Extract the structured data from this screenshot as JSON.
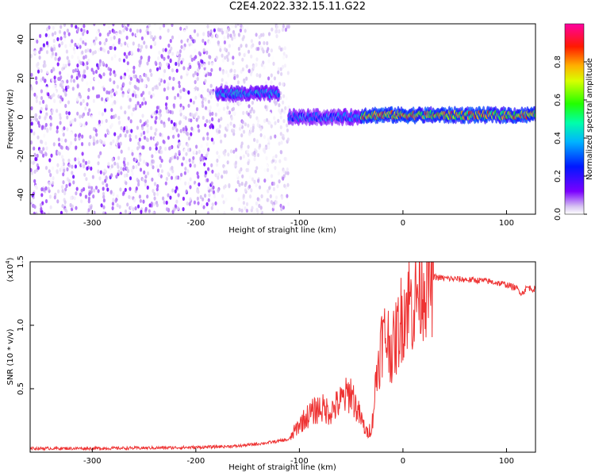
{
  "chart_data": [
    {
      "type": "heatmap",
      "title": "C2E4.2022.332.15.11.G22",
      "xlabel": "Height of straight line (km)",
      "ylabel": "Frequency (Hz)",
      "xlim": [
        -360,
        128
      ],
      "ylim": [
        -50,
        48
      ],
      "xticks": [
        -300,
        -200,
        -100,
        0,
        100
      ],
      "yticks": [
        40,
        20,
        0,
        -20,
        -40
      ],
      "colorbar": {
        "label": "Normalized spectral amplitude",
        "range": [
          0.0,
          1.0
        ],
        "ticks": [
          "0.0",
          "0.2",
          "0.4",
          "0.6",
          "0.8"
        ],
        "tick_values": [
          0.0,
          0.2,
          0.4,
          0.6,
          0.8
        ]
      },
      "features": [
        {
          "region": "broadband noise",
          "x_range": [
            -360,
            -180
          ],
          "y_range": [
            -50,
            48
          ],
          "amplitude": 0.15
        },
        {
          "region": "patchy noise",
          "x_range": [
            -180,
            -110
          ],
          "y_range": [
            -50,
            48
          ],
          "amplitude": 0.08
        },
        {
          "region": "signal band",
          "x_range": [
            -180,
            -120
          ],
          "y_center": 12,
          "amplitude": 0.45
        },
        {
          "region": "signal band",
          "x_range": [
            -110,
            -40
          ],
          "y_center": 0,
          "amplitude": 0.4
        },
        {
          "region": "signal band",
          "x_range": [
            -40,
            128
          ],
          "y_center": 1,
          "amplitude": 0.9
        }
      ],
      "colors": {
        "low": "#ffffff",
        "mid": "#7b00ff",
        "high": "#ff0000"
      }
    },
    {
      "type": "line",
      "xlabel": "Height of straight line (km)",
      "ylabel": "SNR (10 * v/v)",
      "ylabel_unit": "(x10",
      "ylabel_exponent": "4",
      "ylabel_close": ")",
      "xlim": [
        -360,
        128
      ],
      "ylim": [
        0,
        15000
      ],
      "xticks": [
        -300,
        -200,
        -100,
        0,
        100
      ],
      "yticks": [
        0.5,
        1.0,
        1.5
      ],
      "ytick_labels": [
        "0.5",
        "1.0",
        "1.5"
      ],
      "series": [
        {
          "color": "#ee3333",
          "x": [
            -360,
            -300,
            -250,
            -200,
            -160,
            -130,
            -110,
            -100,
            -90,
            -80,
            -70,
            -60,
            -50,
            -45,
            -40,
            -35,
            -30,
            -25,
            -20,
            -15,
            -10,
            -5,
            0,
            5,
            10,
            15,
            20,
            25,
            30,
            40,
            60,
            80,
            100,
            110,
            115,
            120,
            128
          ],
          "y": [
            300,
            300,
            330,
            380,
            480,
            750,
            1000,
            2200,
            3000,
            3500,
            3200,
            4000,
            4800,
            3500,
            2500,
            1500,
            2000,
            6500,
            9000,
            9000,
            8000,
            9500,
            11000,
            12000,
            11500,
            13000,
            13500,
            13600,
            13800,
            13700,
            13600,
            13500,
            13200,
            12900,
            12500,
            13000,
            12800
          ]
        }
      ]
    }
  ]
}
